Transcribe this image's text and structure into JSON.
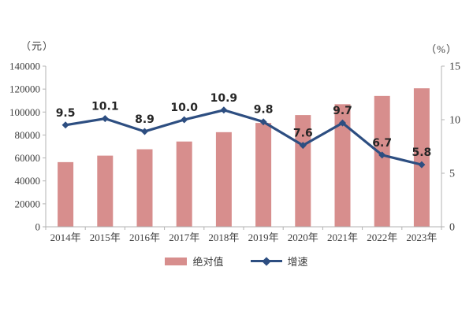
{
  "colors": {
    "bar": "#d78e8d",
    "line": "#2d4e81",
    "axis": "#b3b3b3",
    "tick_text": "#404040",
    "data_label": "#262626",
    "background": "#ffffff"
  },
  "chart_data": {
    "type": "combo",
    "categories": [
      "2014年",
      "2015年",
      "2016年",
      "2017年",
      "2018年",
      "2019年",
      "2020年",
      "2021年",
      "2022年",
      "2023年"
    ],
    "series": [
      {
        "name": "绝对值",
        "type": "bar",
        "axis": "left",
        "values": [
          56360,
          62029,
          67569,
          74318,
          82461,
          90501,
          97379,
          106837,
          114029,
          120698
        ]
      },
      {
        "name": "增速",
        "type": "line",
        "axis": "right",
        "values": [
          9.5,
          10.1,
          8.9,
          10.0,
          10.9,
          9.8,
          7.6,
          9.7,
          6.7,
          5.8
        ],
        "data_labels": [
          "9.5",
          "10.1",
          "8.9",
          "10.0",
          "10.9",
          "9.8",
          "7.6",
          "9.7",
          "6.7",
          "5.8"
        ]
      }
    ],
    "left_axis": {
      "title": "（元）",
      "min": 0,
      "max": 140000,
      "ticks": [
        0,
        20000,
        40000,
        60000,
        80000,
        100000,
        120000,
        140000
      ],
      "tick_labels": [
        "0",
        "20000",
        "40000",
        "60000",
        "80000",
        "100000",
        "120000",
        "140000"
      ]
    },
    "right_axis": {
      "title": "（%）",
      "min": 0,
      "max": 15,
      "ticks": [
        0,
        5,
        10,
        15
      ],
      "tick_labels": [
        "0",
        "5",
        "10",
        "15"
      ]
    },
    "grid": false,
    "legend_position": "bottom"
  }
}
